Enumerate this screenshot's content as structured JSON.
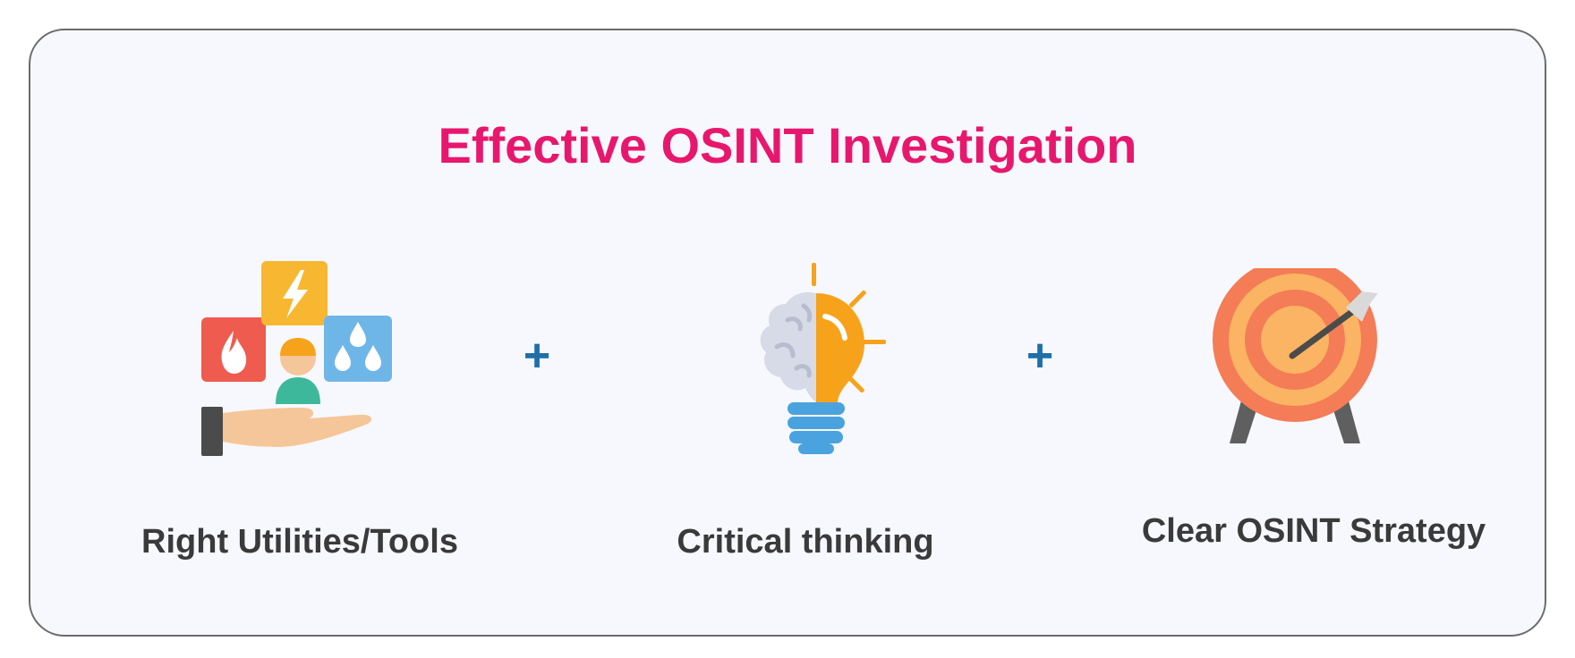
{
  "title": "Effective OSINT Investigation",
  "operator": "+",
  "items": [
    {
      "label": "Right Utilities/Tools",
      "icon": "tools-hand-icon"
    },
    {
      "label": "Critical thinking",
      "icon": "brain-lightbulb-icon"
    },
    {
      "label": "Clear OSINT Strategy",
      "icon": "target-arrow-icon"
    }
  ],
  "colors": {
    "title": "#e8176e",
    "plus": "#1f6fa8",
    "label": "#3a3a3a",
    "card_border": "#6b6b6b",
    "card_background": "#f7f8fd"
  }
}
